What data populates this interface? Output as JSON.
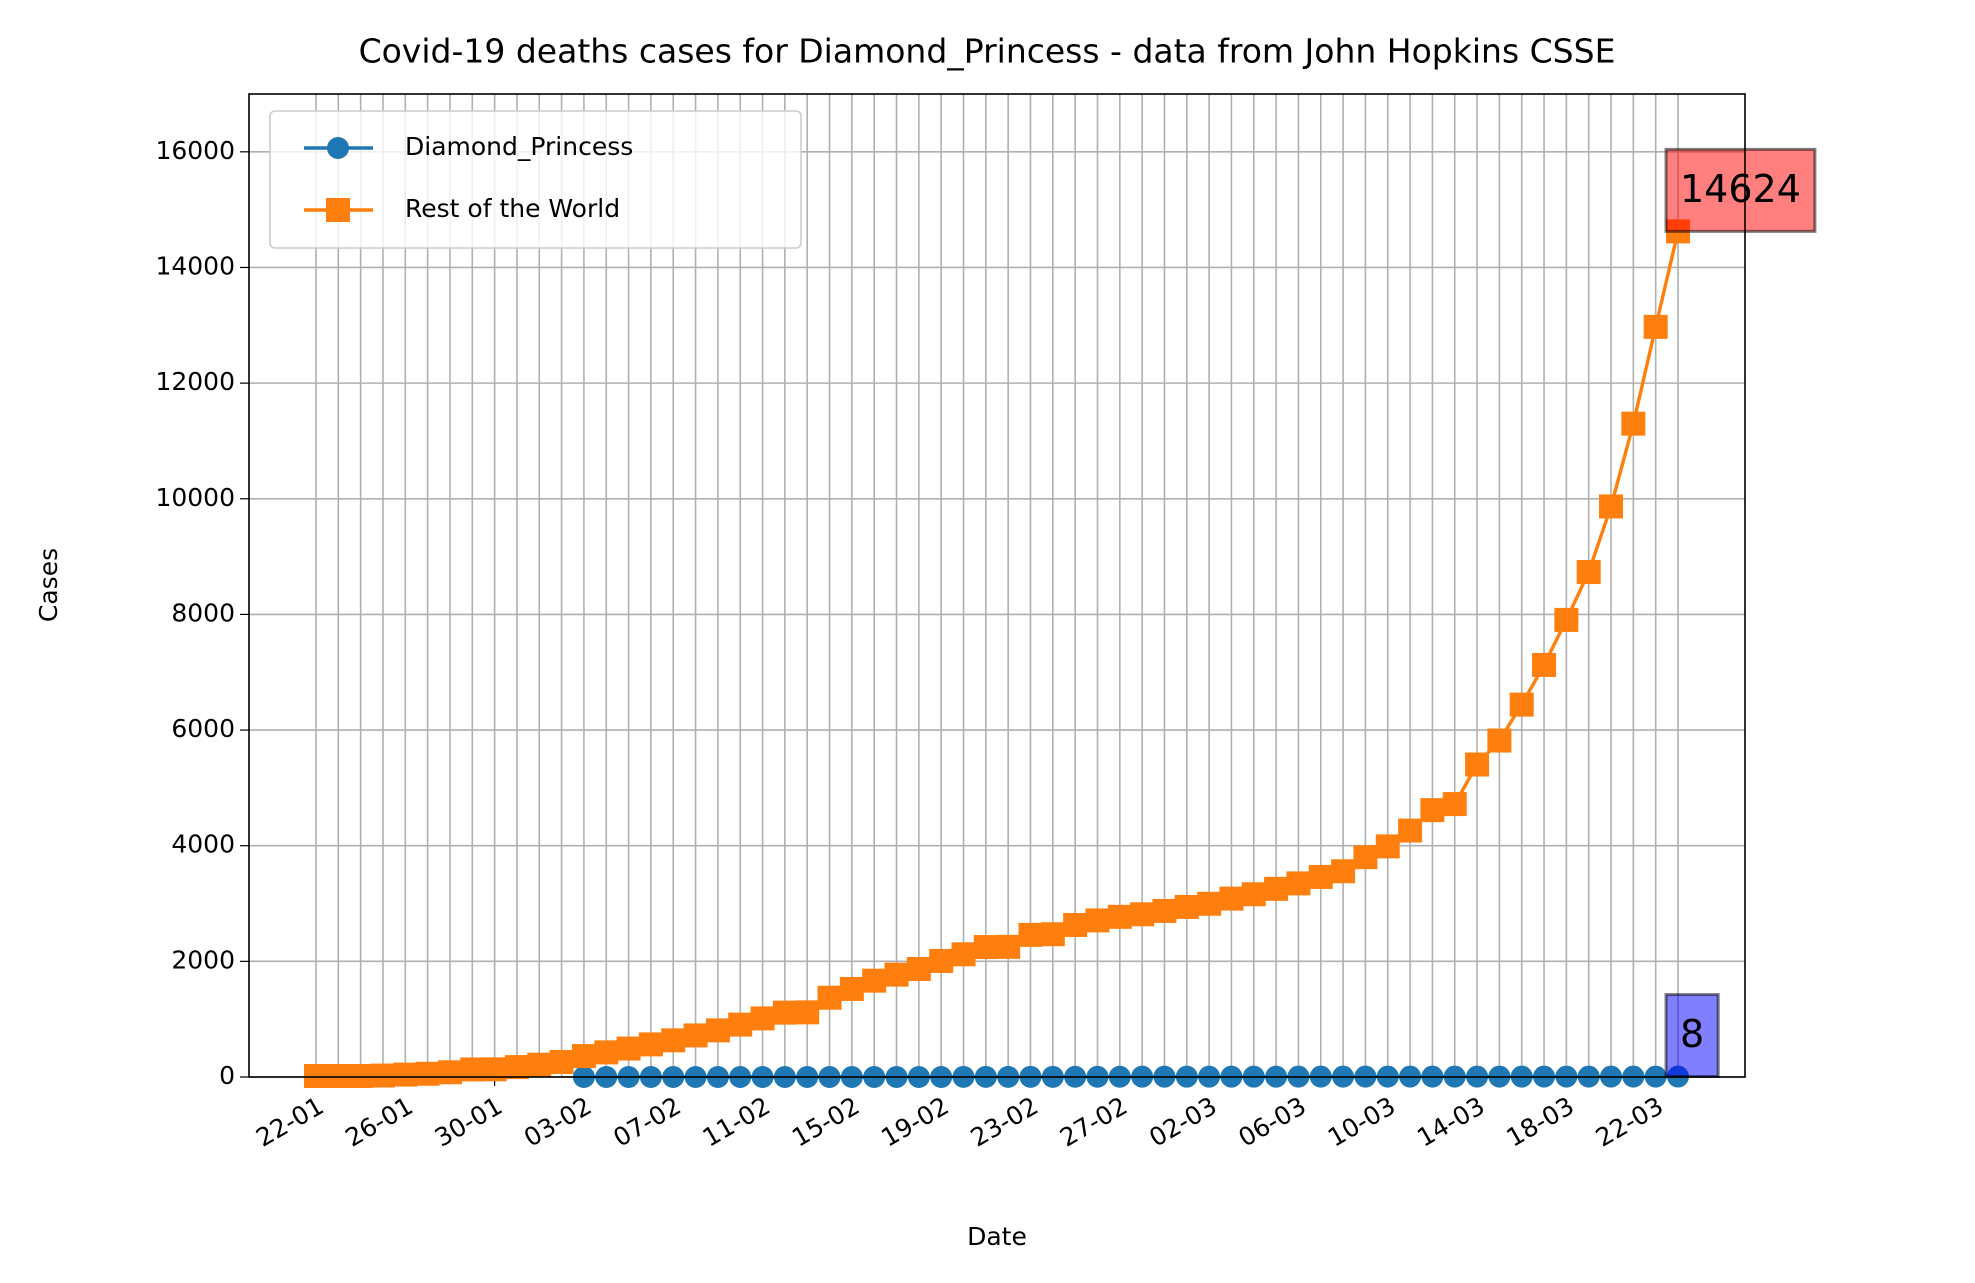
{
  "chart_data": {
    "type": "line",
    "title": "Covid-19 deaths cases for Diamond_Princess - data from John Hopkins CSSE",
    "x_label": "Date",
    "y_label": "Cases",
    "categories": [
      "22-01",
      null,
      null,
      null,
      "26-01",
      null,
      null,
      null,
      "30-01",
      null,
      null,
      null,
      "03-02",
      null,
      null,
      null,
      "07-02",
      null,
      null,
      null,
      "11-02",
      null,
      null,
      null,
      "15-02",
      null,
      null,
      null,
      "19-02",
      null,
      null,
      null,
      "23-02",
      null,
      null,
      null,
      "27-02",
      null,
      null,
      null,
      "02-03",
      null,
      null,
      null,
      "06-03",
      null,
      null,
      null,
      "10-03",
      null,
      null,
      null,
      "14-03",
      null,
      null,
      null,
      "18-03",
      null,
      null,
      null,
      "22-03",
      null
    ],
    "series": [
      {
        "name": "Diamond_Princess",
        "color": "#1f77b4",
        "marker": "circle",
        "box_color": "#0000ff",
        "values": [
          null,
          null,
          null,
          null,
          null,
          null,
          null,
          null,
          null,
          null,
          null,
          null,
          0,
          0,
          0,
          0,
          0,
          0,
          0,
          0,
          0,
          0,
          0,
          0,
          0,
          0,
          0,
          0,
          0,
          2,
          2,
          2,
          3,
          3,
          4,
          4,
          4,
          6,
          6,
          6,
          6,
          6,
          6,
          6,
          7,
          7,
          7,
          7,
          7,
          7,
          7,
          7,
          7,
          7,
          7,
          7,
          7,
          7,
          7,
          7,
          7,
          8
        ]
      },
      {
        "name": "Rest of the World",
        "color": "#ff7f0e",
        "marker": "square",
        "box_color": "#ff0000",
        "values": [
          17,
          17,
          17,
          25,
          41,
          56,
          82,
          131,
          133,
          171,
          213,
          259,
          362,
          426,
          492,
          564,
          634,
          719,
          806,
          906,
          1013,
          1113,
          1118,
          1371,
          1523,
          1666,
          1770,
          1868,
          2007,
          2122,
          2247,
          2251,
          2458,
          2469,
          2629,
          2708,
          2770,
          2814,
          2872,
          2941,
          2996,
          3085,
          3160,
          3254,
          3348,
          3460,
          3558,
          3802,
          3988,
          4262,
          4615,
          4720,
          5404,
          5819,
          6440,
          7126,
          7905,
          8733,
          9867,
          11299,
          12973,
          14624
        ]
      }
    ],
    "ylim": [
      0,
      17000
    ],
    "yticks": [
      0,
      2000,
      4000,
      6000,
      8000,
      10000,
      12000,
      14000,
      16000
    ],
    "grid": true,
    "legend": "upper left"
  }
}
